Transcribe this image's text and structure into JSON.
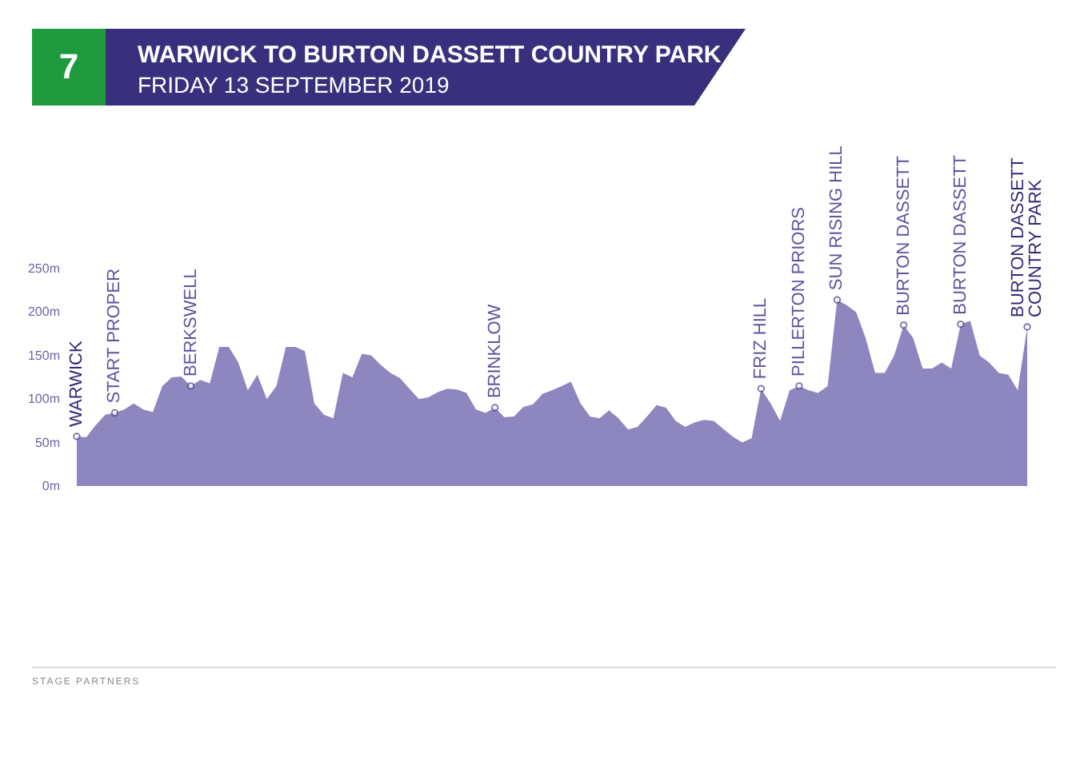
{
  "chart_data": {
    "type": "area",
    "title": "WARWICK TO BURTON DASSETT COUNTRY PARK",
    "subtitle": "FRIDAY 13 SEPTEMBER 2019",
    "annotations": [
      "7",
      "STAGE PARTNERS"
    ],
    "categories": [
      "WARWICK",
      null,
      null,
      null,
      "START PROPER",
      null,
      null,
      null,
      null,
      null,
      null,
      null,
      "BERKSWELL",
      null,
      null,
      null,
      null,
      null,
      null,
      null,
      null,
      null,
      null,
      null,
      null,
      null,
      null,
      null,
      null,
      null,
      null,
      null,
      null,
      null,
      null,
      null,
      null,
      null,
      null,
      null,
      null,
      null,
      null,
      null,
      "BRINKLOW",
      null,
      null,
      null,
      null,
      null,
      null,
      null,
      null,
      null,
      null,
      null,
      null,
      null,
      null,
      null,
      null,
      null,
      null,
      null,
      null,
      null,
      null,
      null,
      null,
      null,
      null,
      null,
      "FRIZ HILL",
      null,
      null,
      null,
      "PILLERTON PRIORS",
      null,
      null,
      null,
      "SUN RISING HILL",
      null,
      null,
      null,
      null,
      null,
      null,
      "BURTON DASSETT",
      null,
      null,
      null,
      null,
      null,
      "BURTON DASSETT",
      null,
      null,
      null,
      null,
      null,
      null,
      "BURTON DASSETT\nCOUNTRY PARK"
    ],
    "values": [
      57,
      56,
      70,
      82,
      84,
      88,
      95,
      88,
      85,
      115,
      125,
      126,
      115,
      122,
      118,
      160,
      160,
      142,
      110,
      128,
      100,
      115,
      160,
      160,
      155,
      95,
      82,
      78,
      130,
      125,
      152,
      150,
      139,
      130,
      124,
      112,
      100,
      102,
      108,
      112,
      111,
      107,
      88,
      84,
      90,
      79,
      80,
      91,
      94,
      106,
      110,
      115,
      120,
      95,
      80,
      78,
      87,
      78,
      65,
      68,
      80,
      93,
      90,
      75,
      68,
      73,
      76,
      75,
      66,
      57,
      50,
      55,
      112,
      95,
      75,
      110,
      115,
      110,
      107,
      115,
      214,
      208,
      200,
      170,
      130,
      130,
      150,
      185,
      170,
      135,
      135,
      142,
      135,
      186,
      190,
      150,
      142,
      130,
      128,
      110,
      183
    ],
    "color": "#8e87bf",
    "ylim": [
      0,
      250
    ],
    "yticks": [
      {
        "value": 0,
        "label": "0m"
      },
      {
        "value": 50,
        "label": "50m"
      },
      {
        "value": 100,
        "label": "100m"
      },
      {
        "value": 150,
        "label": "150m"
      },
      {
        "value": 200,
        "label": "200m"
      },
      {
        "value": 250,
        "label": "250m"
      }
    ],
    "grid": false
  }
}
